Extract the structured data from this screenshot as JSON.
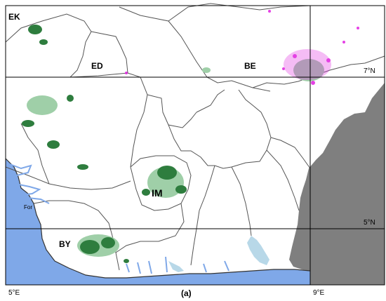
{
  "map": {
    "panel_label": "(a)",
    "state_labels": [
      {
        "id": "ek",
        "text": "EK"
      },
      {
        "id": "ed",
        "text": "ED"
      },
      {
        "id": "be",
        "text": "BE"
      },
      {
        "id": "im",
        "text": "IM"
      },
      {
        "id": "by",
        "text": "BY"
      }
    ],
    "grid_labels": {
      "lat_7n": "7°N",
      "lat_5n": "5°N",
      "lon_5e": "5°E",
      "lon_9e": "9°E"
    },
    "place_labels": {
      "forcados": "For"
    },
    "colors": {
      "sea": "#7fa8e8",
      "neighbor_country": "#7f7f7f",
      "land": "#ffffff",
      "boundary": "#555555",
      "graticule": "#000000",
      "vegetation_dark": "#2e7d3e",
      "vegetation_light": "#9fcfa8",
      "magenta_cluster": "#e020e0",
      "river_water": "#b8d8e8"
    }
  }
}
